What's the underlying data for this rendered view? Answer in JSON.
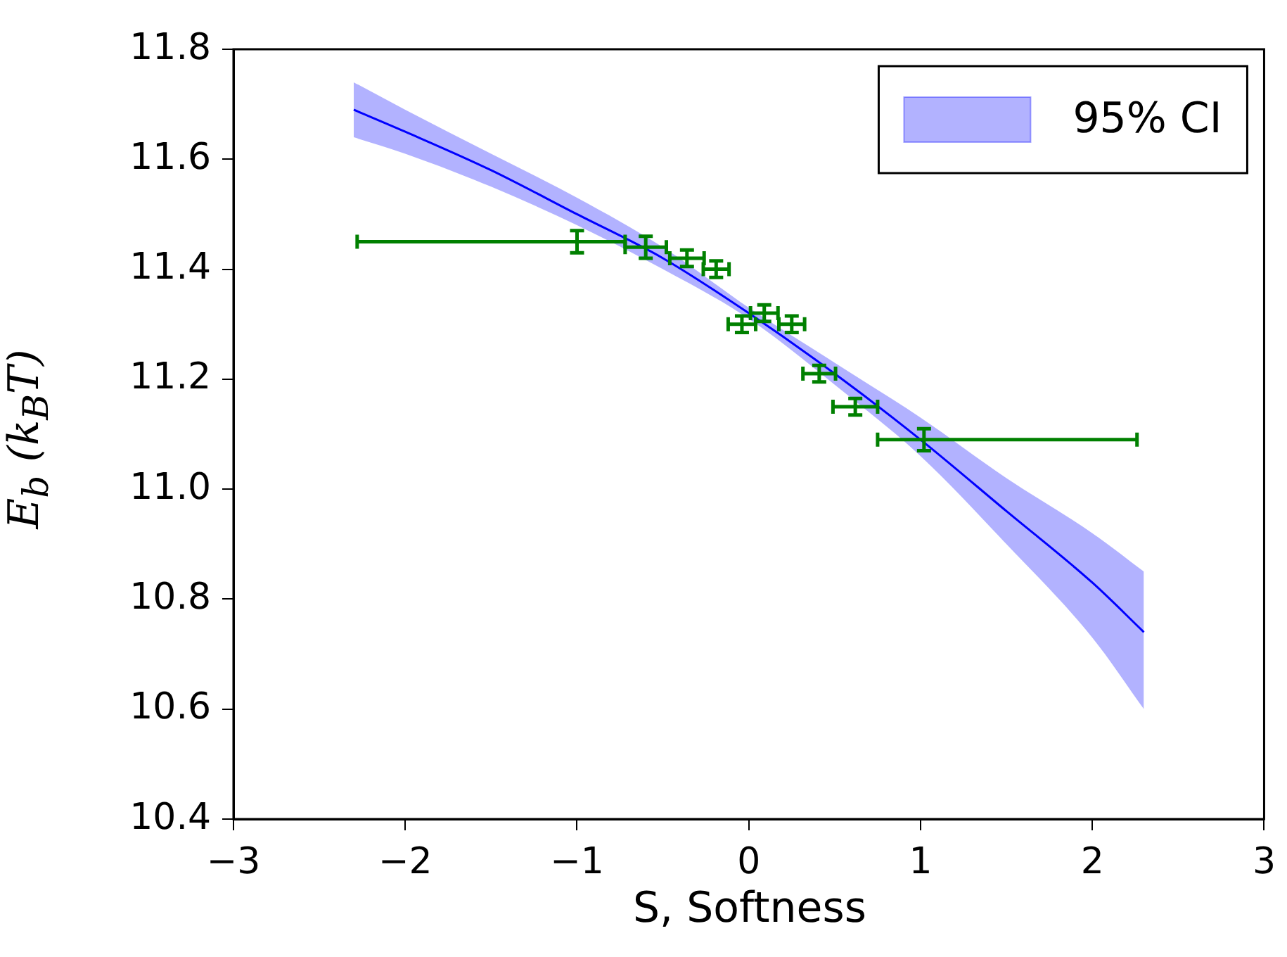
{
  "chart_data": {
    "type": "scatter",
    "xlabel": "S, Softness",
    "ylabel": "E$_{b}$ (k$_{B}$T)",
    "xlim": [
      -3,
      3
    ],
    "ylim": [
      10.4,
      11.8
    ],
    "xticks": [
      {
        "value": -3,
        "label": "−3"
      },
      {
        "value": -2,
        "label": "−2"
      },
      {
        "value": -1,
        "label": "−1"
      },
      0,
      1,
      2,
      3
    ],
    "yticks": [
      10.4,
      10.6,
      10.8,
      {
        "value": 11,
        "label": "11.0"
      },
      11.2,
      11.4,
      11.6,
      11.8
    ],
    "legend": "top right",
    "grid": false,
    "series": [
      {
        "type": "line",
        "name": "95% CI",
        "color": "#0000ff",
        "x": [
          -2.3,
          -2,
          -1.5,
          -1,
          -0.5,
          0,
          0.5,
          1,
          1.5,
          2,
          2.3
        ],
        "values": [
          11.69,
          11.65,
          11.58,
          11.5,
          11.42,
          11.32,
          11.21,
          11.09,
          10.96,
          10.83,
          10.74
        ],
        "lower": [
          11.64,
          11.61,
          11.55,
          11.48,
          11.4,
          11.31,
          11.19,
          11.06,
          10.9,
          10.73,
          10.6
        ],
        "upper": [
          11.74,
          11.69,
          11.61,
          11.53,
          11.44,
          11.33,
          11.23,
          11.13,
          11.02,
          10.92,
          10.85
        ]
      },
      {
        "color": "#008000",
        "x": [
          -1.0,
          -0.6,
          -0.36,
          -0.19,
          -0.04,
          0.09,
          0.25,
          0.41,
          0.62,
          1.02
        ],
        "values": [
          11.45,
          11.44,
          11.42,
          11.4,
          11.3,
          11.32,
          11.3,
          11.21,
          11.15,
          11.09
        ],
        "errors": [
          0.02,
          0.02,
          0.015,
          0.015,
          0.015,
          0.015,
          0.015,
          0.015,
          0.015,
          0.02
        ],
        "xerrors": [
          [
            -2.28,
            -0.72
          ],
          0.12,
          0.1,
          0.075,
          0.08,
          0.08,
          0.075,
          0.095,
          0.13,
          [
            0.75,
            2.26
          ]
        ]
      }
    ]
  }
}
